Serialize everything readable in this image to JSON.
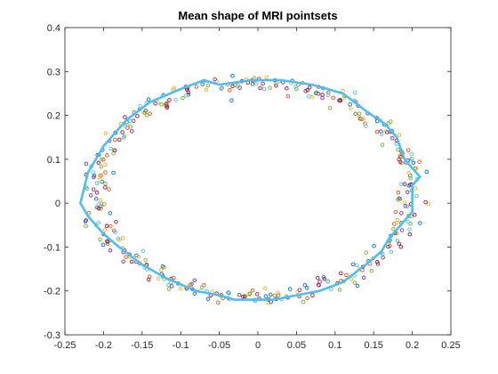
{
  "chart_data": {
    "type": "scatter",
    "title": "Mean shape of MRI pointsets",
    "xlabel": "",
    "ylabel": "",
    "xlim": [
      -0.25,
      0.25
    ],
    "ylim": [
      -0.3,
      0.4
    ],
    "x_ticks": [
      -0.25,
      -0.2,
      -0.15,
      -0.1,
      -0.05,
      0,
      0.05,
      0.1,
      0.15,
      0.2,
      0.25
    ],
    "x_tick_labels": [
      "-0.25",
      "-0.2",
      "-0.15",
      "-0.1",
      "-0.05",
      "0",
      "0.05",
      "0.1",
      "0.15",
      "0.2",
      "0.25"
    ],
    "y_ticks": [
      -0.3,
      -0.2,
      -0.1,
      0,
      0.1,
      0.2,
      0.3,
      0.4
    ],
    "y_tick_labels": [
      "-0.3",
      "-0.2",
      "-0.1",
      "0",
      "0.1",
      "0.2",
      "0.3",
      "0.4"
    ],
    "grid": false,
    "legend": "none",
    "pointset_colors": [
      "#0072bd",
      "#d95319",
      "#edb120",
      "#7e2f8e",
      "#77ac30",
      "#4dbeee",
      "#a2142f"
    ],
    "pointsets_shape": {
      "center": [
        -0.005,
        0.03
      ],
      "radius_x": 0.205,
      "radius_y": 0.245,
      "noise": 0.018,
      "points_per_set": 60
    },
    "mean_shape_color": "#4dbeee",
    "mean_shape": {
      "x": [
        0.19,
        0.18,
        0.165,
        0.14,
        0.11,
        0.07,
        0.03,
        -0.01,
        -0.05,
        -0.07,
        -0.1,
        -0.14,
        -0.17,
        -0.2,
        -0.22,
        -0.23,
        -0.22,
        -0.2,
        -0.18,
        -0.15,
        -0.12,
        -0.08,
        -0.05,
        -0.03,
        -0.01,
        0.02,
        0.05,
        0.08,
        0.11,
        0.14,
        0.16,
        0.17,
        0.19,
        0.2,
        0.2,
        0.21,
        0.19
      ],
      "y": [
        0.1,
        0.15,
        0.18,
        0.21,
        0.25,
        0.27,
        0.28,
        0.28,
        0.27,
        0.28,
        0.26,
        0.23,
        0.19,
        0.13,
        0.07,
        0.0,
        -0.03,
        -0.07,
        -0.1,
        -0.14,
        -0.17,
        -0.2,
        -0.21,
        -0.22,
        -0.22,
        -0.22,
        -0.21,
        -0.2,
        -0.18,
        -0.14,
        -0.11,
        -0.08,
        -0.04,
        -0.02,
        0.04,
        0.06,
        0.1
      ]
    }
  }
}
